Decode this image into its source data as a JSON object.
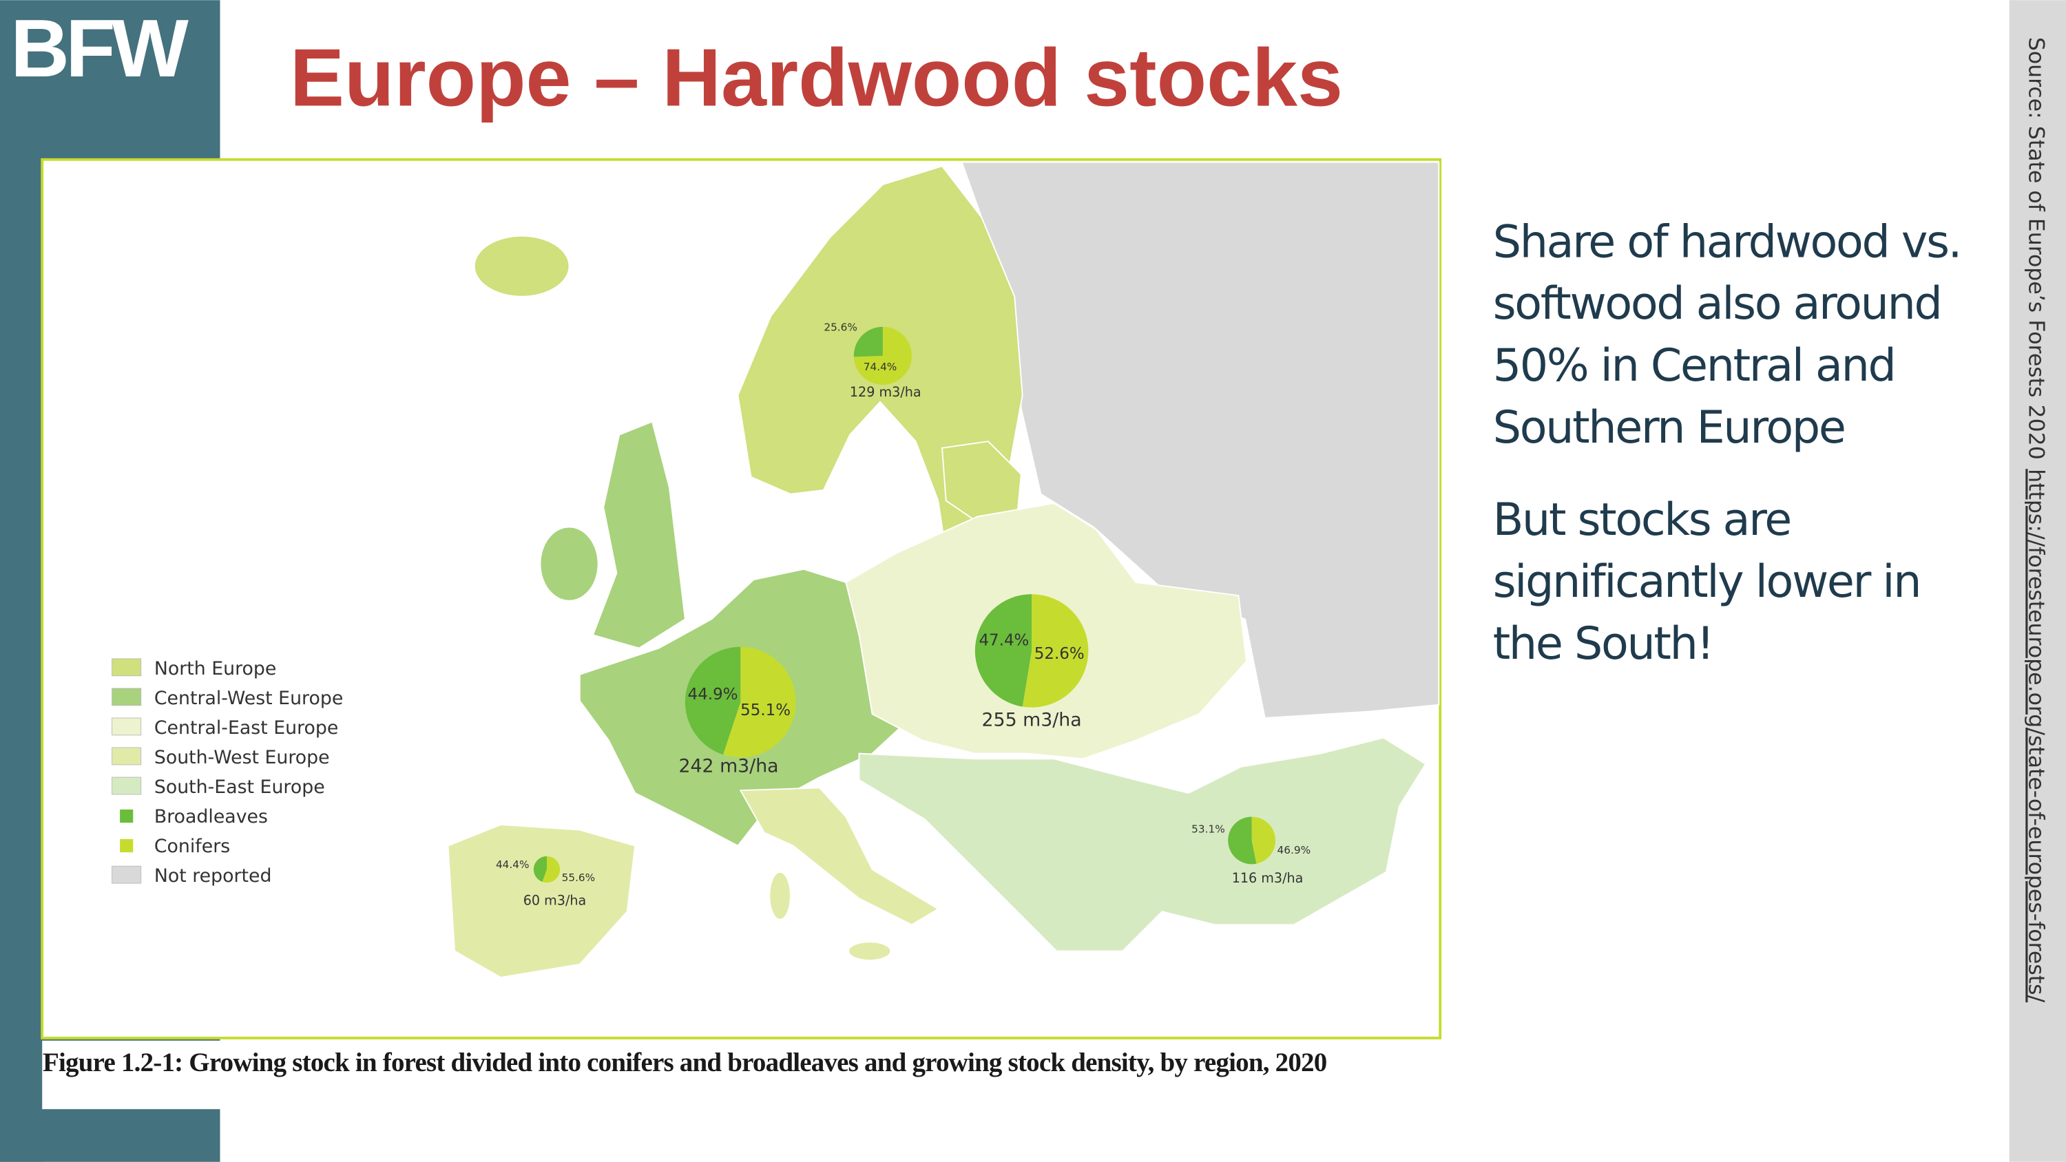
{
  "header": {
    "logo": "BFW",
    "title": "Europe – Hardwood stocks"
  },
  "map": {
    "legend": [
      {
        "label": "North Europe",
        "color": "#cfe07c"
      },
      {
        "label": "Central-West Europe",
        "color": "#a8d27c"
      },
      {
        "label": "Central-East Europe",
        "color": "#eef3cf"
      },
      {
        "label": "South-West Europe",
        "color": "#e2eaa8"
      },
      {
        "label": "South-East Europe",
        "color": "#d6eac2"
      },
      {
        "label": "Broadleaves",
        "color": "#6bbd3c"
      },
      {
        "label": "Conifers",
        "color": "#c5dc2e"
      },
      {
        "label": "Not reported",
        "color": "#d9d9d9"
      }
    ],
    "pies": [
      {
        "values": [
          25.6,
          74.4
        ],
        "value_labels": [
          "25.6%",
          "74.4%"
        ],
        "stock": "129 m3/ha"
      },
      {
        "values": [
          44.9,
          55.1
        ],
        "value_labels": [
          "44.9%",
          "55.1%"
        ],
        "stock": "242 m3/ha"
      },
      {
        "values": [
          47.4,
          52.6
        ],
        "value_labels": [
          "47.4%",
          "52.6%"
        ],
        "stock": "255 m3/ha"
      },
      {
        "values": [
          44.4,
          55.6
        ],
        "value_labels": [
          "44.4%",
          "55.6%"
        ],
        "stock": "60 m3/ha"
      },
      {
        "values": [
          53.1,
          46.9
        ],
        "value_labels": [
          "53.1%",
          "46.9%"
        ],
        "stock": "116 m3/ha"
      }
    ]
  },
  "caption": "Figure 1.2-1: Growing stock in forest divided into conifers and broadleaves and growing stock density, by region, 2020",
  "notes": [
    [
      "Share of hardwood vs.",
      "softwood also around",
      "50% in Central and",
      "Southern Europe"
    ],
    [
      "But stocks are",
      "significantly lower in",
      "the South!"
    ]
  ],
  "source": {
    "text": "Source: State of Europe’s Forests 2020",
    "link": "https://foresteurope.org/state-of-europes-forests/"
  }
}
